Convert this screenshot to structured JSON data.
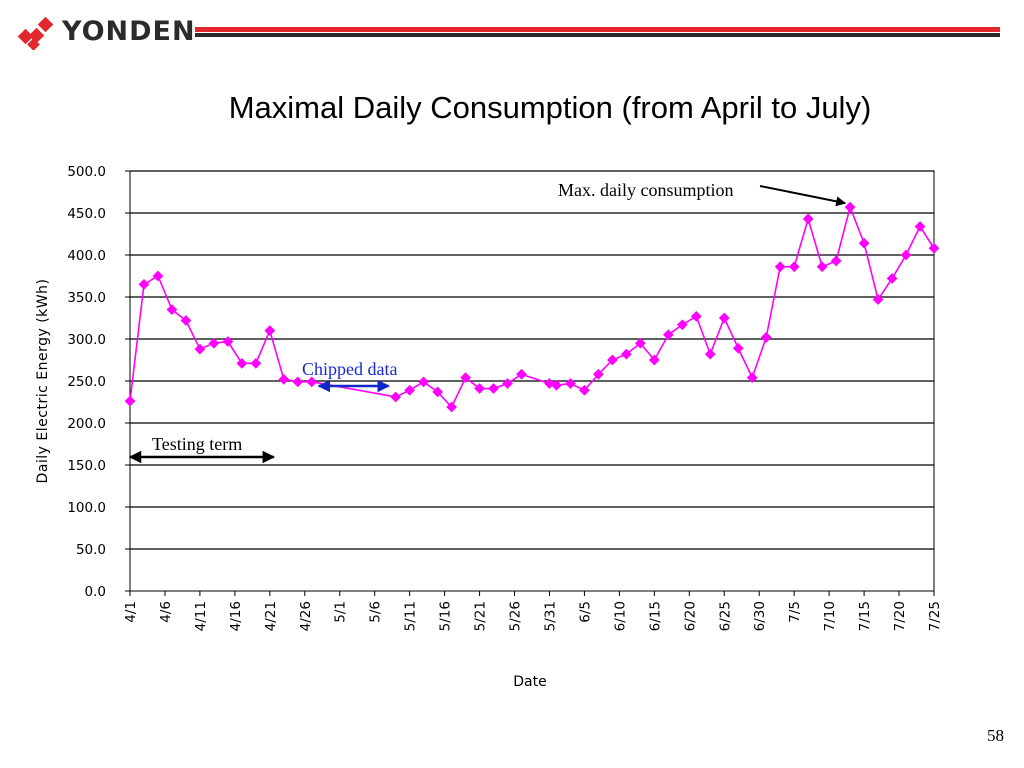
{
  "header": {
    "brand": "YONDEN",
    "title": "Maximal Daily Consumption (from April to July)"
  },
  "colors": {
    "brand_red": "#e2282c",
    "series": "#ff00ff",
    "chipped_arrow": "#1028c8",
    "chipped_text": "#1a2ad0"
  },
  "chart_data": {
    "type": "line",
    "ylabel": "Daily Electric Energy (kWh)",
    "xlabel": "Date",
    "ylim": [
      0,
      500
    ],
    "y_ticks": [
      "0.0",
      "50.0",
      "100.0",
      "150.0",
      "200.0",
      "250.0",
      "300.0",
      "350.0",
      "400.0",
      "450.0",
      "500.0"
    ],
    "x_tick_labels": [
      "4/1",
      "4/6",
      "4/11",
      "4/16",
      "4/21",
      "4/26",
      "5/1",
      "5/6",
      "5/11",
      "5/16",
      "5/21",
      "5/26",
      "5/31",
      "6/5",
      "6/10",
      "6/15",
      "6/20",
      "6/25",
      "6/30",
      "7/5",
      "7/10",
      "7/15",
      "7/20",
      "7/25"
    ],
    "grid": true,
    "series": [
      {
        "points": [
          [
            "4/1",
            226
          ],
          [
            "4/3",
            365
          ],
          [
            "4/5",
            375
          ],
          [
            "4/7",
            335
          ],
          [
            "4/9",
            322
          ],
          [
            "4/11",
            288
          ],
          [
            "4/13",
            295
          ],
          [
            "4/15",
            297
          ],
          [
            "4/17",
            271
          ],
          [
            "4/19",
            271
          ],
          [
            "4/21",
            310
          ],
          [
            "4/23",
            252
          ],
          [
            "4/25",
            249
          ],
          [
            "4/27",
            249
          ],
          [
            "5/9",
            231
          ],
          [
            "5/11",
            239
          ],
          [
            "5/13",
            249
          ],
          [
            "5/15",
            237
          ],
          [
            "5/17",
            219
          ],
          [
            "5/19",
            254
          ],
          [
            "5/21",
            241
          ],
          [
            "5/23",
            241
          ],
          [
            "5/25",
            247
          ],
          [
            "5/27",
            258
          ],
          [
            "5/31",
            247
          ],
          [
            "6/1",
            245
          ],
          [
            "6/3",
            247
          ],
          [
            "6/5",
            239
          ],
          [
            "6/7",
            258
          ],
          [
            "6/9",
            275
          ],
          [
            "6/11",
            282
          ],
          [
            "6/13",
            295
          ],
          [
            "6/15",
            275
          ],
          [
            "6/17",
            305
          ],
          [
            "6/19",
            317
          ],
          [
            "6/21",
            327
          ],
          [
            "6/23",
            282
          ],
          [
            "6/25",
            325
          ],
          [
            "6/27",
            289
          ],
          [
            "6/29",
            254
          ],
          [
            "7/1",
            302
          ],
          [
            "7/3",
            386
          ],
          [
            "7/5",
            386
          ],
          [
            "7/7",
            443
          ],
          [
            "7/9",
            386
          ],
          [
            "7/11",
            393
          ],
          [
            "7/13",
            457
          ],
          [
            "7/15",
            414
          ],
          [
            "7/17",
            347
          ],
          [
            "7/19",
            372
          ],
          [
            "7/21",
            400
          ],
          [
            "7/23",
            434
          ],
          [
            "7/25",
            408
          ]
        ]
      }
    ],
    "annotations": {
      "max_label": "Max. daily consumption",
      "max_point": "7/13",
      "chipped_label": "Chipped data",
      "chipped_range": [
        "4/28",
        "5/8"
      ],
      "testing_label": "Testing term",
      "testing_range": [
        "4/1",
        "4/21"
      ]
    }
  },
  "footer": {
    "page_number": "58"
  }
}
